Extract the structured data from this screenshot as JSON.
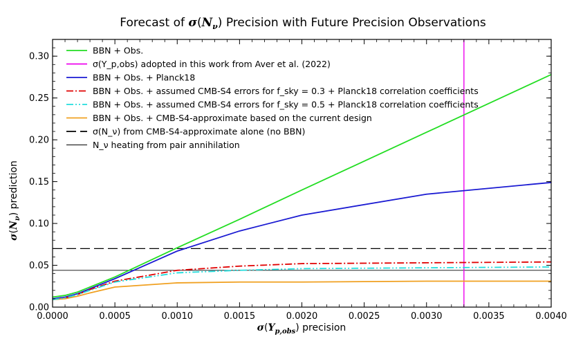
{
  "chart_data": {
    "type": "line",
    "title": "Forecast of σ(N_ν) Precision with Future Precision Observations",
    "xlabel": "σ(Y_p,obs) precision",
    "ylabel": "σ(N_ν) prediction",
    "xlim": [
      0.0,
      0.004
    ],
    "ylim": [
      0.0,
      0.32
    ],
    "xticks": [
      0.0,
      0.0005,
      0.001,
      0.0015,
      0.002,
      0.0025,
      0.003,
      0.0035,
      0.004
    ],
    "xtick_labels": [
      "0.0000",
      "0.0005",
      "0.0010",
      "0.0015",
      "0.0020",
      "0.0025",
      "0.0030",
      "0.0035",
      "0.0040"
    ],
    "yticks": [
      0.0,
      0.05,
      0.1,
      0.15,
      0.2,
      0.25,
      0.3
    ],
    "ytick_labels": [
      "0.00",
      "0.05",
      "0.10",
      "0.15",
      "0.20",
      "0.25",
      "0.30"
    ],
    "grid": false,
    "legend_position": "top-left",
    "series": [
      {
        "name": "BBN + Obs.",
        "color": "#22dd22",
        "style": "solid",
        "x": [
          0.0,
          0.0001,
          0.0002,
          0.0003,
          0.0005,
          0.001,
          0.0015,
          0.002,
          0.003,
          0.004
        ],
        "y": [
          0.012,
          0.014,
          0.018,
          0.024,
          0.036,
          0.071,
          0.105,
          0.14,
          0.209,
          0.278
        ]
      },
      {
        "name": "σ(Y_p,obs) adopted in this work from Aver et al. (2022)",
        "color": "#ee00ee",
        "style": "vline",
        "x": [
          0.0033
        ]
      },
      {
        "name": "BBN + Obs. + Planck18",
        "color": "#1a1ad2",
        "style": "solid",
        "x": [
          0.0,
          0.0001,
          0.0002,
          0.0003,
          0.0005,
          0.001,
          0.0015,
          0.002,
          0.003,
          0.004
        ],
        "y": [
          0.01,
          0.012,
          0.016,
          0.022,
          0.034,
          0.067,
          0.091,
          0.11,
          0.135,
          0.149
        ]
      },
      {
        "name": "BBN + Obs. + assumed CMB-S4 errors for f_sky = 0.3 + Planck18 correlation coefficients",
        "color": "#e00000",
        "style": "dashdot",
        "x": [
          0.0,
          0.0001,
          0.0002,
          0.0003,
          0.0005,
          0.001,
          0.0015,
          0.002,
          0.003,
          0.004
        ],
        "y": [
          0.009,
          0.011,
          0.015,
          0.021,
          0.031,
          0.044,
          0.049,
          0.052,
          0.053,
          0.054
        ]
      },
      {
        "name": "BBN + Obs. + assumed CMB-S4 errors for f_sky = 0.5 + Planck18 correlation coefficients",
        "color": "#22dddd",
        "style": "dashdotdot",
        "x": [
          0.0,
          0.0001,
          0.0002,
          0.0003,
          0.0005,
          0.001,
          0.0015,
          0.002,
          0.003,
          0.004
        ],
        "y": [
          0.009,
          0.011,
          0.015,
          0.02,
          0.03,
          0.041,
          0.044,
          0.046,
          0.047,
          0.048
        ]
      },
      {
        "name": "BBN + Obs. + CMB-S4-approximate based on the current design",
        "color": "#f0a020",
        "style": "solid",
        "x": [
          0.0,
          0.0001,
          0.0002,
          0.0003,
          0.0005,
          0.001,
          0.0015,
          0.002,
          0.003,
          0.004
        ],
        "y": [
          0.009,
          0.01,
          0.013,
          0.017,
          0.024,
          0.029,
          0.03,
          0.03,
          0.031,
          0.031
        ]
      },
      {
        "name": "σ(N_ν) from CMB-S4-approximate alone (no BBN)",
        "color": "#000000",
        "style": "dashed-hline",
        "y": [
          0.07
        ]
      },
      {
        "name": "N_ν heating from pair annihilation",
        "color": "#000000",
        "style": "thin-hline",
        "y": [
          0.044
        ]
      }
    ]
  }
}
